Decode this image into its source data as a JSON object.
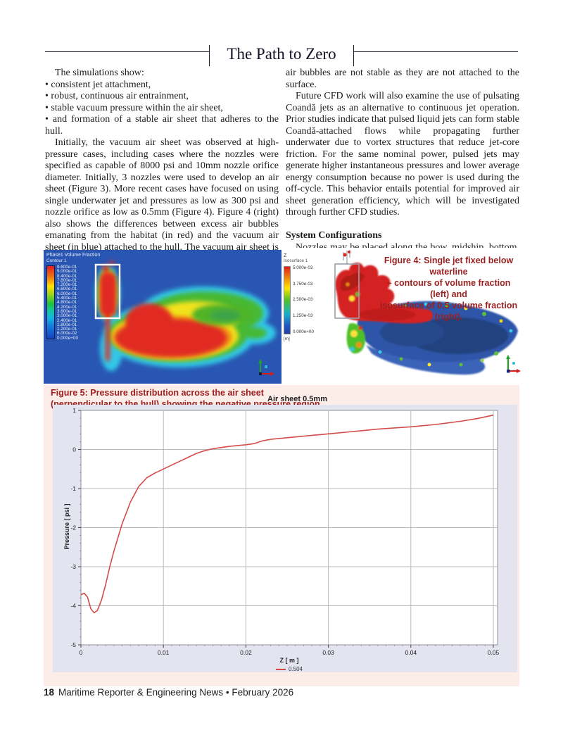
{
  "header": {
    "title": "The Path to Zero"
  },
  "article": {
    "left": {
      "intro": "The simulations show:",
      "bullets": [
        "• consistent jet attachment,",
        "• robust, continuous air entrainment,",
        "• stable vacuum pressure within the air sheet,",
        "• and formation of a stable air sheet that adheres to the hull."
      ],
      "paragraph": "Initially, the vacuum air sheet was observed at high-pressure cases, including cases where the nozzles were specified as capable of 8000 psi and 10mm nozzle orifice diameter. Initially, 3 nozzles were used to develop an air sheet (Figure 3).  More recent cases have focused on using single underwater jet and pressures as low as 300 psi and nozzle orifice as low as 0.5mm (Figure 4). Figure 4 (right) also shows the differences between excess air bubbles emanating from the habitat (in red) and the vacuum air sheet (in blue) attached to the hull. The vacuum air sheet is stable and unique to this system, while the pressurized"
    },
    "right": {
      "paragraph1": "air bubbles are not stable as they are not attached to the surface.",
      "paragraph2": "Future CFD work will also examine the use of pulsating Coandă jets as an alternative to continuous jet operation. Prior studies indicate that pulsed liquid jets can form stable Coandă-attached flows while propagating further underwater due to vortex structures that reduce jet-core friction. For the same nominal power, pulsed jets may generate higher instantaneous pressures and lower average energy consumption because no power is used during the off-cycle. This behavior entails potential for improved air sheet generation efficiency, which will be investigated through further CFD studies.",
      "heading": "System Configurations",
      "paragraph3": "Nozzles may be placed along the bow, midship, bottom, and stern sections, depending on hull form. Pump configurations"
    }
  },
  "figure4": {
    "caption_lines": [
      "Figure 4: Single jet fixed below waterline",
      "– contours of volume fraction (left) and",
      "isosurface of 0.5 volume fraction (right)."
    ],
    "contour_legend": {
      "title": "Phase1 Volume Fraction",
      "subtitle": "Contour 1",
      "values": [
        "9.600e-01",
        "9.000e-01",
        "8.400e-01",
        "7.800e-01",
        "7.200e-01",
        "6.600e-01",
        "6.000e-01",
        "5.400e-01",
        "4.800e-01",
        "4.200e-01",
        "3.600e-01",
        "3.000e-01",
        "2.400e-01",
        "1.800e-01",
        "1.200e-01",
        "6.000e-02",
        "0.000e+00"
      ]
    },
    "iso_legend": {
      "axis": "Z",
      "title": "Isosurface 1",
      "values": [
        "5.000e-03",
        "3.750e-03",
        "2.500e-03",
        "1.250e-03",
        "0.000e+00"
      ],
      "unit": "[m]"
    }
  },
  "figure5": {
    "caption_lines": [
      "Figure 5: Pressure distribution across the air sheet",
      "(perpendicular to the hull) showing the negative pressure region."
    ]
  },
  "chart_data": {
    "type": "line",
    "title": "Air sheet 0.5mm",
    "xlabel": "Z [ m ]",
    "ylabel": "Pressure [ psi ]",
    "xlim": [
      0,
      0.05
    ],
    "ylim": [
      -5,
      1
    ],
    "xticks": [
      0,
      0.01,
      0.02,
      0.03,
      0.04,
      0.05
    ],
    "yticks": [
      1,
      0,
      -1,
      -2,
      -3,
      -4,
      -5
    ],
    "grid": true,
    "legend_position": "bottom",
    "series": [
      {
        "name": "0.504",
        "color": "#d34b4a",
        "x": [
          0,
          0.0004,
          0.0008,
          0.0012,
          0.0016,
          0.002,
          0.0025,
          0.003,
          0.0035,
          0.004,
          0.005,
          0.006,
          0.007,
          0.008,
          0.009,
          0.01,
          0.011,
          0.012,
          0.013,
          0.014,
          0.015,
          0.016,
          0.018,
          0.02,
          0.021,
          0.022,
          0.023,
          0.025,
          0.027,
          0.03,
          0.033,
          0.036,
          0.04,
          0.043,
          0.046,
          0.048,
          0.05
        ],
        "y": [
          -3.72,
          -3.68,
          -3.78,
          -4.08,
          -4.18,
          -4.12,
          -3.85,
          -3.45,
          -3.0,
          -2.6,
          -1.9,
          -1.35,
          -0.95,
          -0.72,
          -0.6,
          -0.5,
          -0.4,
          -0.3,
          -0.2,
          -0.1,
          -0.03,
          0.02,
          0.08,
          0.12,
          0.15,
          0.22,
          0.26,
          0.3,
          0.34,
          0.4,
          0.46,
          0.52,
          0.58,
          0.64,
          0.72,
          0.79,
          0.88
        ]
      }
    ]
  },
  "footer": {
    "page_number": "18",
    "text": "Maritime Reporter & Engineering News • February 2026"
  },
  "colors": {
    "caption_red": "#9b1f1f",
    "cfd_background_blue": "#2956b2",
    "curve_red": "#d34b4a",
    "pink_panel": "#fcede9",
    "chart_panel": "#e4e4f0"
  }
}
